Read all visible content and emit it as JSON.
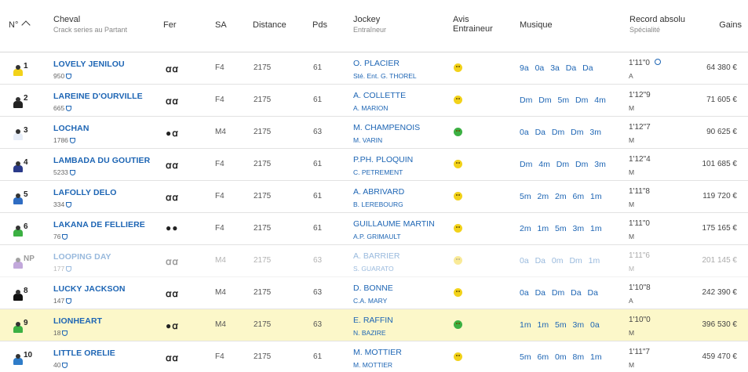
{
  "header": {
    "num": "N°",
    "cheval": "Cheval",
    "cheval_sub": "Crack series au Partant",
    "fer": "Fer",
    "sa": "SA",
    "distance": "Distance",
    "pds": "Pds",
    "jockey": "Jockey",
    "jockey_sub": "Entraîneur",
    "avis_1": "Avis",
    "avis_2": "Entraineur",
    "musique": "Musique",
    "record": "Record absolu",
    "record_sub": "Spécialité",
    "gains": "Gains"
  },
  "colors": {
    "accent": "#1d65b4",
    "highlight": "#fcf7c9",
    "avis_yellow": "#f2d21a",
    "avis_green": "#3cb043"
  },
  "rows": [
    {
      "num": "1",
      "name": "LOVELY JENILOU",
      "sub": "950",
      "fer": "ꭤꭤ",
      "sa": "F4",
      "distance": "2175",
      "pds": "61",
      "jockey": "O. PLACIER",
      "trainer": "Sté. Ent. G. THOREL",
      "avis": "yellow",
      "musique": "9a 0a 3a Da Da",
      "record": "1'11\"0",
      "spec": "A",
      "gains": "64 380 €",
      "jersey": "#f2d21a"
    },
    {
      "num": "2",
      "name": "LAREINE D'OURVILLE",
      "sub": "665",
      "fer": "ꭤꭤ",
      "sa": "F4",
      "distance": "2175",
      "pds": "61",
      "jockey": "A. COLLETTE",
      "trainer": "A. MARION",
      "avis": "yellow",
      "musique": "Dm Dm 5m Dm 4m",
      "record": "1'12\"9",
      "spec": "M",
      "gains": "71 605 €",
      "jersey": "#222222"
    },
    {
      "num": "3",
      "name": "LOCHAN",
      "sub": "1786",
      "fer": "●ꭤ",
      "sa": "M4",
      "distance": "2175",
      "pds": "63",
      "jockey": "M. CHAMPENOIS",
      "trainer": "M. VARIN",
      "avis": "green",
      "musique": "0a Da Dm Dm 3m",
      "record": "1'12\"7",
      "spec": "M",
      "gains": "90 625 €",
      "jersey": "#e8eef8"
    },
    {
      "num": "4",
      "name": "LAMBADA DU GOUTIER",
      "sub": "5233",
      "fer": "ꭤꭤ",
      "sa": "F4",
      "distance": "2175",
      "pds": "61",
      "jockey": "P.PH. PLOQUIN",
      "trainer": "C. PETREMENT",
      "avis": "yellow",
      "musique": "Dm 4m Dm Dm 3m",
      "record": "1'12\"4",
      "spec": "M",
      "gains": "101 685 €",
      "jersey": "#2a3a8a"
    },
    {
      "num": "5",
      "name": "LAFOLLY DELO",
      "sub": "334",
      "fer": "ꭤꭤ",
      "sa": "F4",
      "distance": "2175",
      "pds": "61",
      "jockey": "A. ABRIVARD",
      "trainer": "B. LEREBOURG",
      "avis": "yellow",
      "musique": "5m 2m 2m 6m 1m",
      "record": "1'11\"8",
      "spec": "M",
      "gains": "119 720 €",
      "jersey": "#2f6cc2"
    },
    {
      "num": "6",
      "name": "LAKANA DE FELLIERE",
      "sub": "76",
      "fer": "●●",
      "sa": "F4",
      "distance": "2175",
      "pds": "61",
      "jockey": "GUILLAUME MARTIN",
      "trainer": "A.P. GRIMAULT",
      "avis": "yellow",
      "musique": "2m 1m 5m 3m 1m",
      "record": "1'11\"0",
      "spec": "M",
      "gains": "175 165 €",
      "jersey": "#3cb043"
    },
    {
      "num": "NP",
      "name": "LOOPING DAY",
      "sub": "177",
      "fer": "ꭤꭤ",
      "sa": "M4",
      "distance": "2175",
      "pds": "63",
      "jockey": "A. BARRIER",
      "trainer": "S. GUARATO",
      "avis": "yellow",
      "musique": "0a Da 0m Dm 1m",
      "record": "1'11\"6",
      "spec": "M",
      "gains": "201 145 €",
      "jersey": "#7a3fb0"
    },
    {
      "num": "8",
      "name": "LUCKY JACKSON",
      "sub": "147",
      "fer": "ꭤꭤ",
      "sa": "M4",
      "distance": "2175",
      "pds": "63",
      "jockey": "D. BONNE",
      "trainer": "C.A. MARY",
      "avis": "yellow",
      "musique": "0a Da Dm Da Da",
      "record": "1'10\"8",
      "spec": "A",
      "gains": "242 390 €",
      "jersey": "#111111"
    },
    {
      "num": "9",
      "name": "LIONHEART",
      "sub": "18",
      "fer": "●ꭤ",
      "sa": "M4",
      "distance": "2175",
      "pds": "63",
      "jockey": "E. RAFFIN",
      "trainer": "N. BAZIRE",
      "avis": "green",
      "musique": "1m 1m 5m 3m 0a",
      "record": "1'10\"0",
      "spec": "M",
      "gains": "396 530 €",
      "jersey": "#3cb043"
    },
    {
      "num": "10",
      "name": "LITTLE ORELIE",
      "sub": "40",
      "fer": "ꭤꭤ",
      "sa": "F4",
      "distance": "2175",
      "pds": "61",
      "jockey": "M. MOTTIER",
      "trainer": "M. MOTTIER",
      "avis": "yellow",
      "musique": "5m 6m 0m 8m 1m",
      "record": "1'11\"7",
      "spec": "M",
      "gains": "459 470 €",
      "jersey": "#2f7cc8"
    }
  ]
}
